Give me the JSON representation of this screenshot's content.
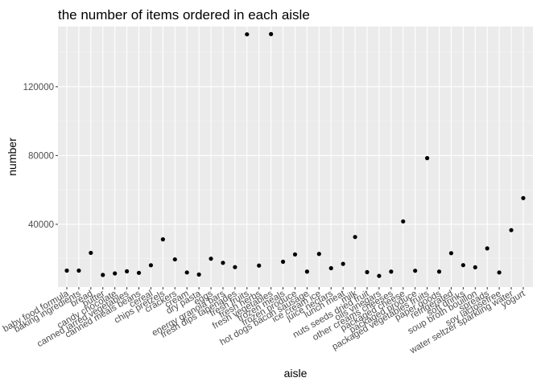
{
  "chart_data": {
    "type": "scatter",
    "title": "the number of items ordered in each aisle",
    "xlabel": "aisle",
    "ylabel": "number",
    "ylim": [
      3500,
      155000
    ],
    "y_ticks": [
      40000,
      80000,
      120000
    ],
    "y_tick_labels": [
      "40000",
      "80000",
      "120000"
    ],
    "grid": true,
    "legend": "none",
    "colors": {
      "panel": "#ebebeb",
      "grid": "#ffffff",
      "point": "#000000"
    },
    "categories": [
      "baby food formula",
      "baking ingredients",
      "bread",
      "butter",
      "candy chocolate",
      "canned jarred vegetables",
      "canned meals beans",
      "cereal",
      "chips pretzels",
      "crackers",
      "cream",
      "dry pasta",
      "eggs",
      "energy granola bars",
      "fresh dips tapenades",
      "fresh fruits",
      "fresh herbs",
      "fresh vegetables",
      "frozen meals",
      "frozen produce",
      "hot dogs bacon sausage",
      "ice cream ice",
      "juice nectars",
      "lunch meat",
      "milk",
      "nuts seeds dried fruit",
      "oils vinegars",
      "other creams cheeses",
      "packaged cheese",
      "packaged produce",
      "packaged vegetables fruits",
      "paper goods",
      "refrigerated",
      "soft drinks",
      "soup broth bouillon",
      "spreads",
      "soy lactosefree",
      "water seltzer sparkling water",
      "yogurt"
    ],
    "values": [
      13088,
      13088,
      23405,
      10575,
      11453,
      12679,
      11774,
      16201,
      31269,
      19592,
      12000,
      10800,
      20000,
      17600,
      15100,
      150473,
      16000,
      150609,
      18221,
      22500,
      12500,
      22800,
      14500,
      17000,
      32644,
      12200,
      10000,
      12500,
      41699,
      13000,
      78493,
      12500,
      23228,
      16279,
      15000,
      26000,
      12000,
      36617,
      55240
    ]
  }
}
